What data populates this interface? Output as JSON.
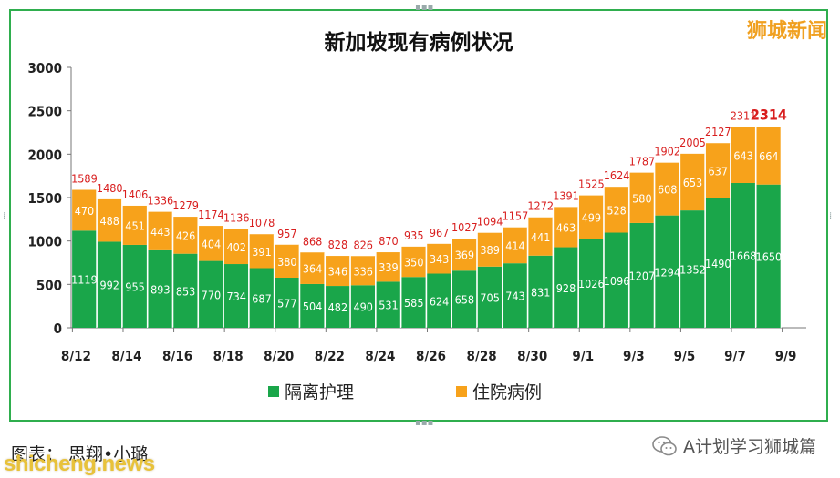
{
  "brand_text": "狮城新闻",
  "caption_text": "图表： 思翔•小璐",
  "wechat_label": "A计划学习狮城篇",
  "watermark_text": "shicheng.news",
  "colors": {
    "isolation": "#1aa64a",
    "hospital": "#f7a21b",
    "total_label": "#d81e1e",
    "frame": "#2fae4e"
  },
  "chart_data": {
    "type": "bar",
    "stacked": true,
    "title": "新加坡现有病例状况",
    "ylim": [
      0,
      3000
    ],
    "yticks": [
      0,
      500,
      1000,
      1500,
      2000,
      2500,
      3000
    ],
    "categories": [
      "8/12",
      "8/13",
      "8/14",
      "8/15",
      "8/16",
      "8/17",
      "8/18",
      "8/19",
      "8/20",
      "8/21",
      "8/22",
      "8/23",
      "8/24",
      "8/25",
      "8/26",
      "8/27",
      "8/28",
      "8/29",
      "8/30",
      "8/31",
      "9/1",
      "9/2",
      "9/3",
      "9/4",
      "9/5",
      "9/6",
      "9/7",
      "9/8"
    ],
    "xtick_labels": [
      "8/12",
      "8/14",
      "8/16",
      "8/18",
      "8/20",
      "8/22",
      "8/24",
      "8/26",
      "8/28",
      "8/30",
      "9/1",
      "9/3",
      "9/5",
      "9/7",
      "9/9"
    ],
    "series": [
      {
        "name": "隔离护理",
        "values": [
          1119,
          992,
          955,
          893,
          853,
          770,
          734,
          687,
          577,
          504,
          482,
          490,
          531,
          585,
          624,
          658,
          705,
          743,
          831,
          928,
          1026,
          1096,
          1207,
          1294,
          1352,
          1490,
          1668,
          1650
        ]
      },
      {
        "name": "住院病例",
        "values": [
          470,
          488,
          451,
          443,
          426,
          404,
          402,
          391,
          380,
          364,
          346,
          336,
          339,
          350,
          343,
          369,
          389,
          414,
          441,
          463,
          499,
          528,
          580,
          608,
          653,
          637,
          643,
          664
        ]
      }
    ],
    "totals": [
      1589,
      1480,
      1406,
      1336,
      1279,
      1174,
      1136,
      1078,
      957,
      868,
      828,
      826,
      870,
      935,
      967,
      1027,
      1094,
      1157,
      1272,
      1391,
      1525,
      1624,
      1787,
      1902,
      2005,
      2127,
      2311,
      2314
    ],
    "legend_position": "bottom",
    "grid": false
  }
}
